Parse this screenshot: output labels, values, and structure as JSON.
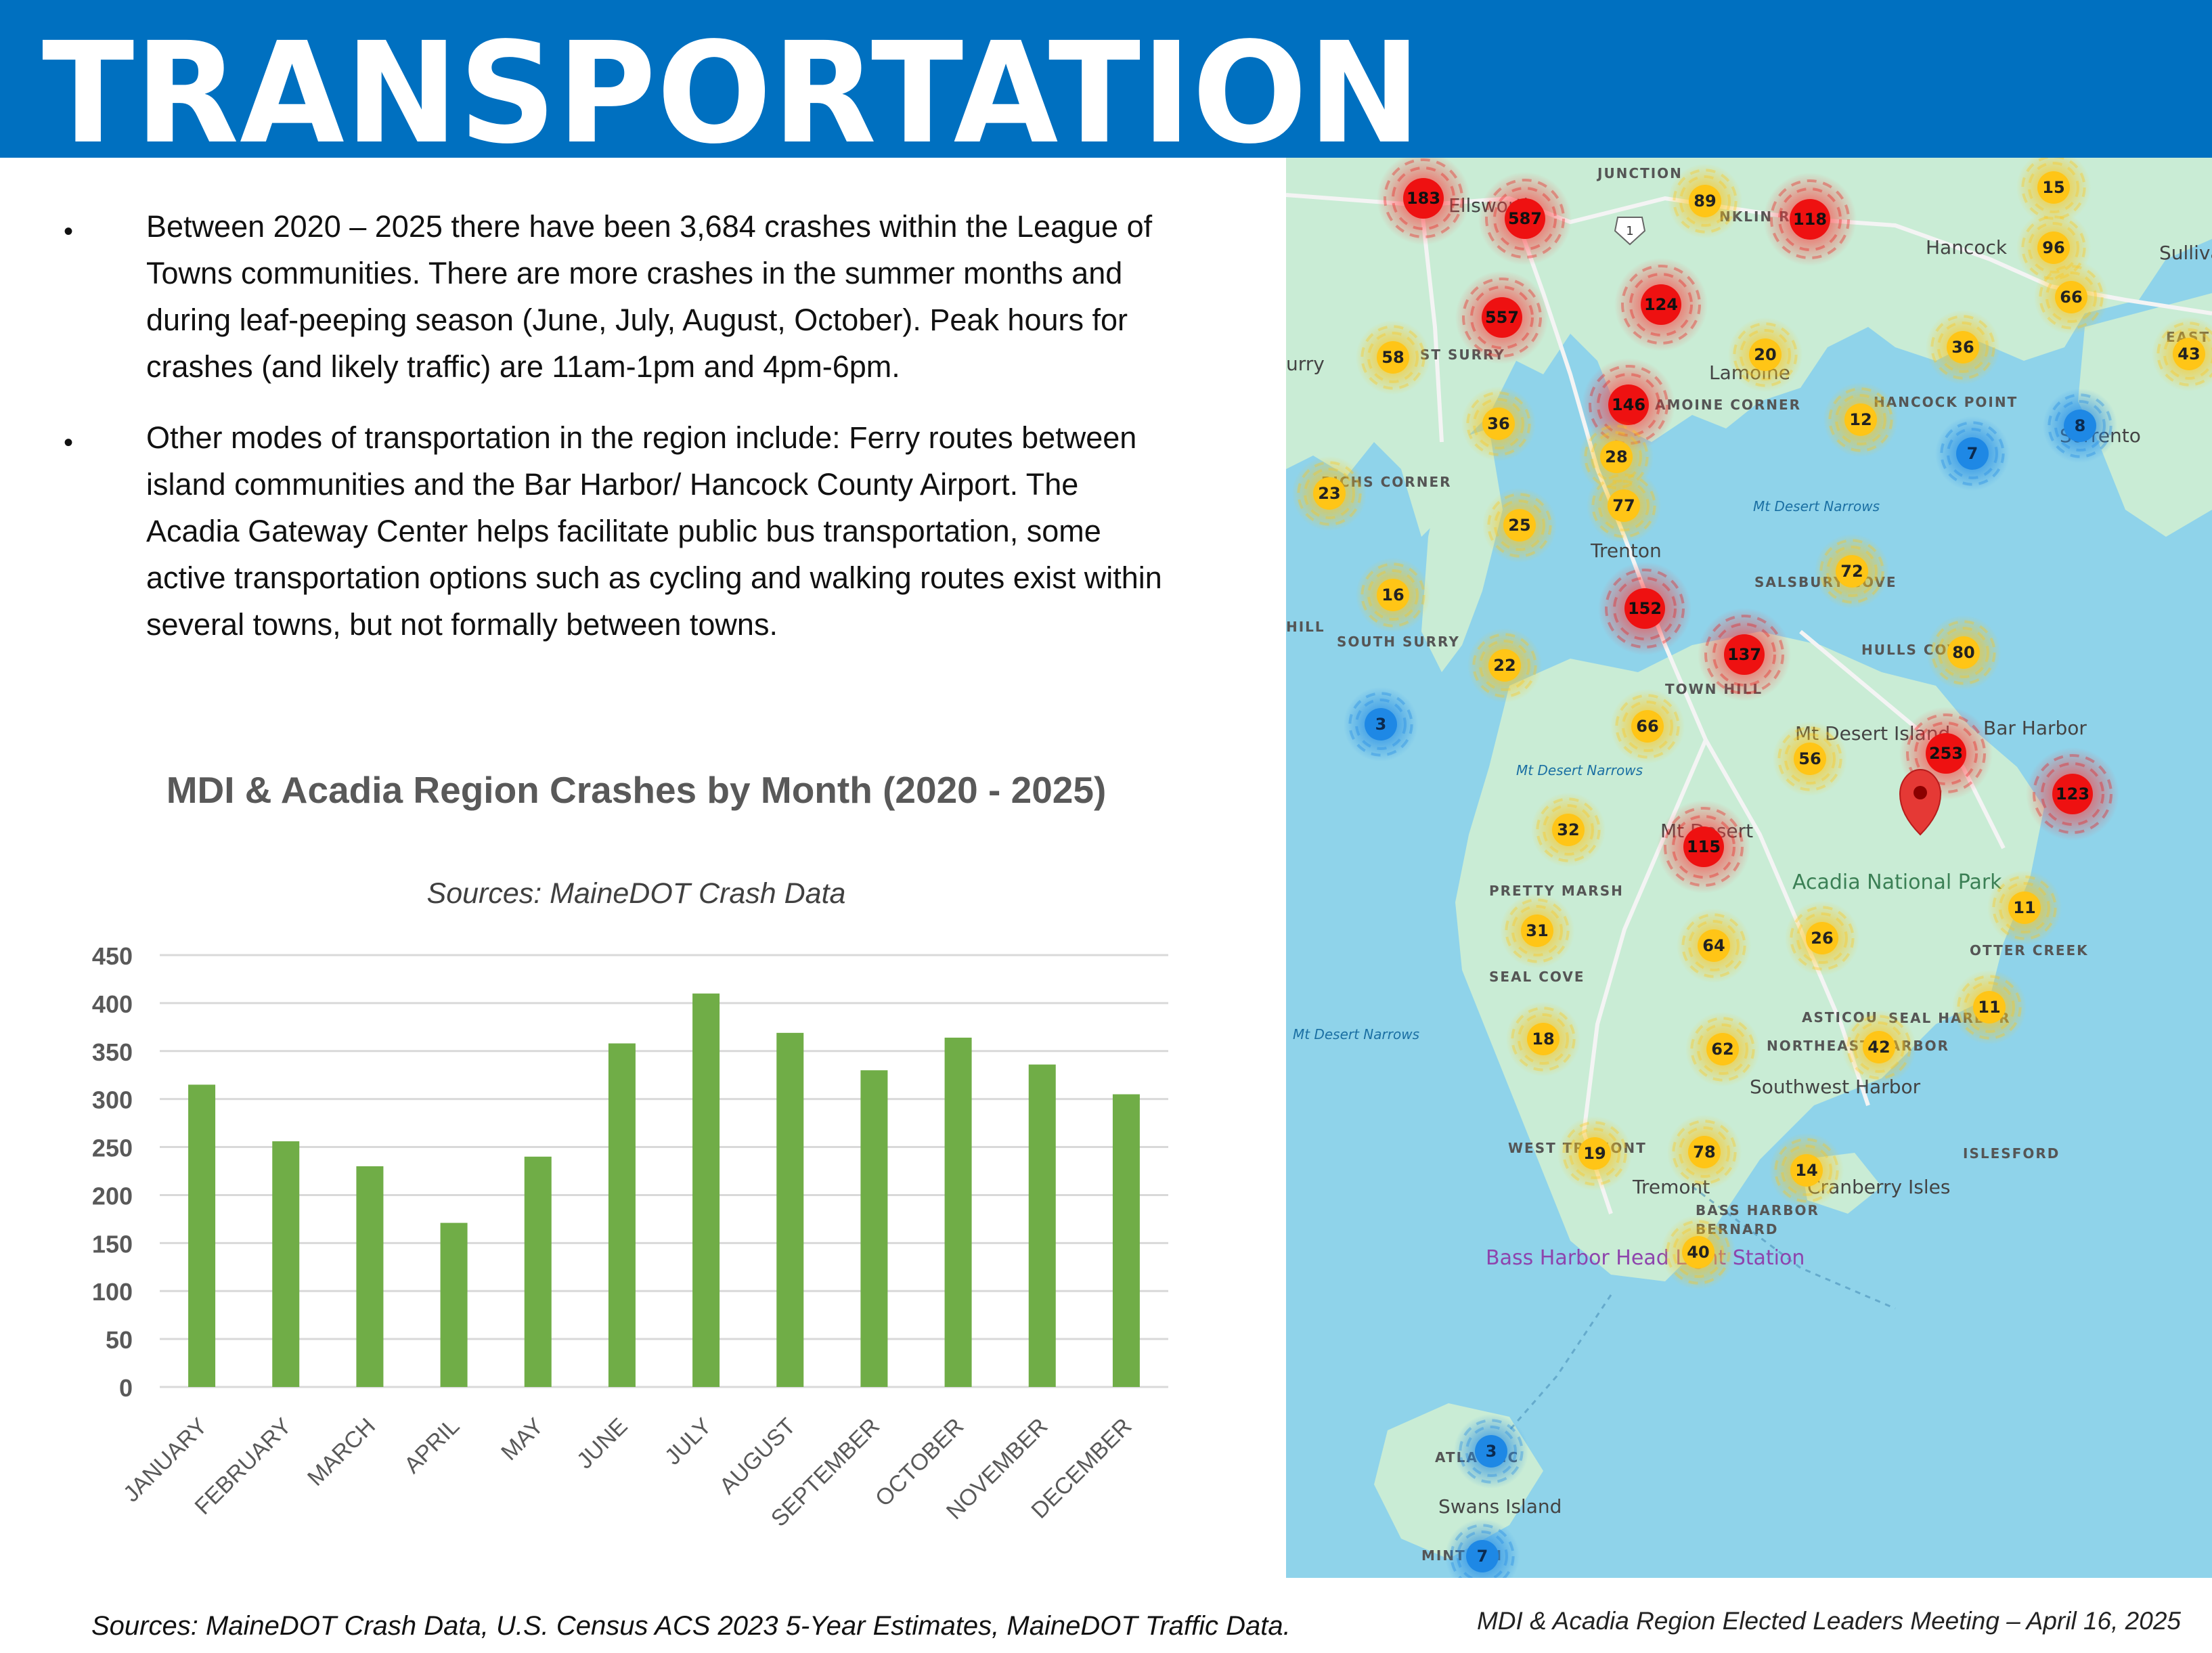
{
  "header": {
    "title": "TRANSPORTATION",
    "bg_color": "#0070c0"
  },
  "bullets": [
    "Between 2020 – 2025 there have been 3,684 crashes within the League of Towns communities. There are more crashes in the summer months and during leaf-peeping  season (June, July, August, October). Peak hours for crashes (and likely traffic) are 11am-1pm and 4pm-6pm.",
    "Other modes of transportation in the region include: Ferry routes between island communities and the Bar Harbor/ Hancock County Airport. The Acadia Gateway Center helps facilitate public bus transportation, some active transportation options such as cycling and walking routes exist within several towns, but not formally between towns."
  ],
  "chart_data": {
    "type": "bar",
    "title": "MDI & Acadia Region Crashes by Month (2020 - 2025)",
    "subtitle": "Sources: MaineDOT Crash Data",
    "categories": [
      "JANUARY",
      "FEBRUARY",
      "MARCH",
      "APRIL",
      "MAY",
      "JUNE",
      "JULY",
      "AUGUST",
      "SEPTEMBER",
      "OCTOBER",
      "NOVEMBER",
      "DECEMBER"
    ],
    "values": [
      315,
      256,
      230,
      171,
      240,
      358,
      410,
      369,
      330,
      364,
      336,
      305
    ],
    "ylim": [
      0,
      450
    ],
    "yticks": [
      0,
      50,
      100,
      150,
      200,
      250,
      300,
      350,
      400,
      450
    ],
    "grid": true,
    "bar_color": "#70ad47"
  },
  "map": {
    "place_labels": [
      "JUNCTION",
      "Ellsworth",
      "NKLIN RD",
      "Hancock",
      "Sullivan",
      "EAST SULLIVAN",
      "urry",
      "ST SURRY",
      "Lamoine",
      "AMOINE CORNER",
      "HANCOCK POINT",
      "Sorrento",
      "RICHS CORNER",
      "Trenton",
      "Mt Desert Narrows",
      "SALSBURY COVE",
      "HILL",
      "SOUTH SURRY",
      "HULLS COVE",
      "TOWN HILL",
      "Bar Harbor",
      "Mt Desert Island",
      "Mt Desert Narrows",
      "Mt Desert",
      "Acadia National Park",
      "PRETTY MARSH",
      "OTTER CREEK",
      "SEAL COVE",
      "ASTICOU",
      "SEAL HARBOR",
      "Mt Desert Narrows",
      "NORTHEAST HARBOR",
      "Southwest Harbor",
      "WEST TREMONT",
      "ISLESFORD",
      "Tremont",
      "Cranberry Isles",
      "BASS HARBOR",
      "BERNARD",
      "Bass Harbor Head Light Station",
      "ATLANTIC",
      "Swans Island",
      "MINTURN"
    ],
    "route_shield": "1",
    "clusters": [
      {
        "n": "183",
        "level": "red"
      },
      {
        "n": "587",
        "level": "red"
      },
      {
        "n": "89",
        "level": "yellow"
      },
      {
        "n": "118",
        "level": "red"
      },
      {
        "n": "15",
        "level": "yellow"
      },
      {
        "n": "96",
        "level": "yellow"
      },
      {
        "n": "66",
        "level": "yellow"
      },
      {
        "n": "557",
        "level": "red"
      },
      {
        "n": "124",
        "level": "red"
      },
      {
        "n": "58",
        "level": "yellow"
      },
      {
        "n": "20",
        "level": "yellow"
      },
      {
        "n": "36",
        "level": "yellow"
      },
      {
        "n": "43",
        "level": "yellow"
      },
      {
        "n": "146",
        "level": "red"
      },
      {
        "n": "36",
        "level": "yellow"
      },
      {
        "n": "12",
        "level": "yellow"
      },
      {
        "n": "8",
        "level": "blue"
      },
      {
        "n": "7",
        "level": "blue"
      },
      {
        "n": "28",
        "level": "yellow"
      },
      {
        "n": "23",
        "level": "yellow"
      },
      {
        "n": "77",
        "level": "yellow"
      },
      {
        "n": "25",
        "level": "yellow"
      },
      {
        "n": "72",
        "level": "yellow"
      },
      {
        "n": "16",
        "level": "yellow"
      },
      {
        "n": "152",
        "level": "red"
      },
      {
        "n": "80",
        "level": "yellow"
      },
      {
        "n": "137",
        "level": "red"
      },
      {
        "n": "22",
        "level": "yellow"
      },
      {
        "n": "3",
        "level": "blue"
      },
      {
        "n": "66",
        "level": "yellow"
      },
      {
        "n": "56",
        "level": "yellow"
      },
      {
        "n": "253",
        "level": "red"
      },
      {
        "n": "123",
        "level": "red"
      },
      {
        "n": "32",
        "level": "yellow"
      },
      {
        "n": "115",
        "level": "red"
      },
      {
        "n": "11",
        "level": "yellow"
      },
      {
        "n": "31",
        "level": "yellow"
      },
      {
        "n": "64",
        "level": "yellow"
      },
      {
        "n": "26",
        "level": "yellow"
      },
      {
        "n": "11",
        "level": "yellow"
      },
      {
        "n": "18",
        "level": "yellow"
      },
      {
        "n": "62",
        "level": "yellow"
      },
      {
        "n": "42",
        "level": "yellow"
      },
      {
        "n": "19",
        "level": "yellow"
      },
      {
        "n": "78",
        "level": "yellow"
      },
      {
        "n": "14",
        "level": "yellow"
      },
      {
        "n": "40",
        "level": "yellow"
      },
      {
        "n": "3",
        "level": "blue"
      },
      {
        "n": "7",
        "level": "blue"
      }
    ],
    "pin": "location-pin-icon",
    "colors": {
      "water": "#8fd3ea",
      "land": "#c8ecd4",
      "red": "#ee1111",
      "yellow": "#ffc516",
      "blue": "#1e88e5"
    }
  },
  "footer": {
    "sources": "Sources: MaineDOT Crash Data, U.S. Census ACS 2023 5-Year Estimates, MaineDOT Traffic Data.",
    "meeting": "MDI & Acadia Region Elected Leaders Meeting – April 16, 2025"
  }
}
